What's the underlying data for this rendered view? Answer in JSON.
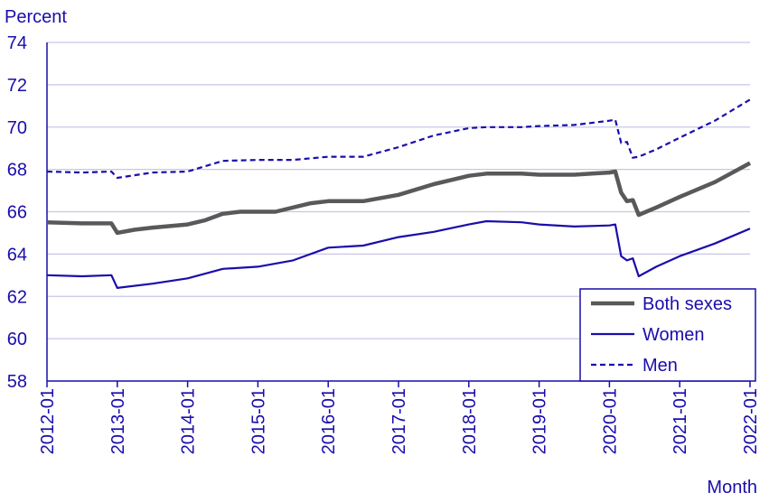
{
  "chart_data": {
    "type": "line",
    "ylabel": "Percent",
    "xlabel": "Month",
    "ylim": [
      58,
      74
    ],
    "yticks": [
      58,
      60,
      62,
      64,
      66,
      68,
      70,
      72,
      74
    ],
    "xticks": [
      "2012-01",
      "2013-01",
      "2014-01",
      "2015-01",
      "2016-01",
      "2017-01",
      "2018-01",
      "2019-01",
      "2020-01",
      "2021-01",
      "2022-01"
    ],
    "grid": "horizontal",
    "legend_position": "bottom-right",
    "colors": {
      "axis_text": "#1a0dab",
      "grid": "#c8c6e8",
      "axis_line": "#1a0dab"
    },
    "series": [
      {
        "name": "Both sexes",
        "color": "#595959",
        "style": "solid-thick",
        "points": [
          [
            "2012-01",
            65.5
          ],
          [
            "2012-07",
            65.45
          ],
          [
            "2012-12",
            65.45
          ],
          [
            "2013-01",
            65.0
          ],
          [
            "2013-04",
            65.15
          ],
          [
            "2013-07",
            65.25
          ],
          [
            "2014-01",
            65.4
          ],
          [
            "2014-04",
            65.6
          ],
          [
            "2014-07",
            65.9
          ],
          [
            "2014-10",
            66.0
          ],
          [
            "2015-01",
            66.0
          ],
          [
            "2015-04",
            66.0
          ],
          [
            "2015-10",
            66.4
          ],
          [
            "2016-01",
            66.5
          ],
          [
            "2016-07",
            66.5
          ],
          [
            "2017-01",
            66.8
          ],
          [
            "2017-07",
            67.3
          ],
          [
            "2018-01",
            67.7
          ],
          [
            "2018-04",
            67.8
          ],
          [
            "2018-10",
            67.8
          ],
          [
            "2019-01",
            67.75
          ],
          [
            "2019-07",
            67.75
          ],
          [
            "2019-10",
            67.8
          ],
          [
            "2020-01",
            67.85
          ],
          [
            "2020-02",
            67.9
          ],
          [
            "2020-03",
            66.9
          ],
          [
            "2020-04",
            66.5
          ],
          [
            "2020-05",
            66.55
          ],
          [
            "2020-06",
            65.85
          ],
          [
            "2020-09",
            66.2
          ],
          [
            "2021-01",
            66.7
          ],
          [
            "2021-07",
            67.4
          ],
          [
            "2022-01",
            68.3
          ]
        ]
      },
      {
        "name": "Women",
        "color": "#1a0dab",
        "style": "solid-thin",
        "points": [
          [
            "2012-01",
            63.0
          ],
          [
            "2012-07",
            62.95
          ],
          [
            "2012-12",
            63.0
          ],
          [
            "2013-01",
            62.4
          ],
          [
            "2013-07",
            62.6
          ],
          [
            "2014-01",
            62.85
          ],
          [
            "2014-07",
            63.3
          ],
          [
            "2015-01",
            63.4
          ],
          [
            "2015-07",
            63.7
          ],
          [
            "2016-01",
            64.3
          ],
          [
            "2016-07",
            64.4
          ],
          [
            "2017-01",
            64.8
          ],
          [
            "2017-07",
            65.05
          ],
          [
            "2018-01",
            65.4
          ],
          [
            "2018-04",
            65.55
          ],
          [
            "2018-10",
            65.5
          ],
          [
            "2019-01",
            65.4
          ],
          [
            "2019-07",
            65.3
          ],
          [
            "2020-01",
            65.35
          ],
          [
            "2020-02",
            65.4
          ],
          [
            "2020-03",
            63.9
          ],
          [
            "2020-04",
            63.7
          ],
          [
            "2020-05",
            63.8
          ],
          [
            "2020-06",
            62.95
          ],
          [
            "2020-09",
            63.4
          ],
          [
            "2021-01",
            63.9
          ],
          [
            "2021-07",
            64.5
          ],
          [
            "2022-01",
            65.2
          ]
        ]
      },
      {
        "name": "Men",
        "color": "#1a0dab",
        "style": "dashed",
        "points": [
          [
            "2012-01",
            67.9
          ],
          [
            "2012-07",
            67.85
          ],
          [
            "2012-12",
            67.9
          ],
          [
            "2013-01",
            67.6
          ],
          [
            "2013-07",
            67.85
          ],
          [
            "2014-01",
            67.9
          ],
          [
            "2014-07",
            68.4
          ],
          [
            "2015-01",
            68.45
          ],
          [
            "2015-07",
            68.45
          ],
          [
            "2016-01",
            68.6
          ],
          [
            "2016-07",
            68.6
          ],
          [
            "2017-01",
            69.05
          ],
          [
            "2017-07",
            69.6
          ],
          [
            "2018-01",
            69.95
          ],
          [
            "2018-04",
            70.0
          ],
          [
            "2018-10",
            70.0
          ],
          [
            "2019-01",
            70.05
          ],
          [
            "2019-07",
            70.1
          ],
          [
            "2020-01",
            70.3
          ],
          [
            "2020-02",
            70.35
          ],
          [
            "2020-03",
            69.25
          ],
          [
            "2020-04",
            69.3
          ],
          [
            "2020-05",
            68.55
          ],
          [
            "2020-06",
            68.6
          ],
          [
            "2020-09",
            68.95
          ],
          [
            "2021-01",
            69.5
          ],
          [
            "2021-07",
            70.3
          ],
          [
            "2022-01",
            71.3
          ]
        ]
      }
    ]
  }
}
